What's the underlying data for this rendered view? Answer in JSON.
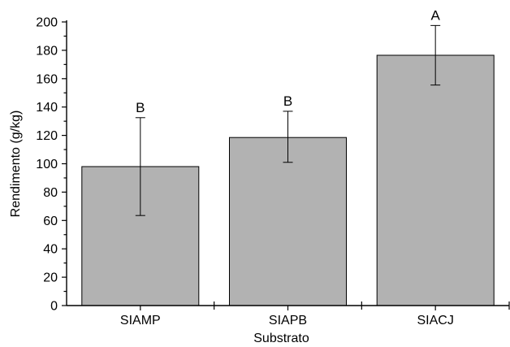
{
  "chart_data": {
    "type": "bar",
    "title": "",
    "xlabel": "Substrato",
    "ylabel": "Rendimento (g/kg)",
    "categories": [
      "SIAMP",
      "SIAPB",
      "SIACJ"
    ],
    "values": [
      98,
      118.5,
      176.5
    ],
    "error_low": [
      63.5,
      101,
      155.5
    ],
    "error_high": [
      132.5,
      137,
      197.5
    ],
    "group_letters": [
      "B",
      "B",
      "A"
    ],
    "ylim": [
      0,
      200
    ],
    "yticks": [
      0,
      20,
      40,
      60,
      80,
      100,
      120,
      140,
      160,
      180,
      200
    ],
    "yticks_minor": [
      10,
      30,
      50,
      70,
      90,
      110,
      130,
      150,
      170,
      190
    ],
    "grid": false,
    "bar_color": "#b2b2b2",
    "line_color": "#000000"
  }
}
